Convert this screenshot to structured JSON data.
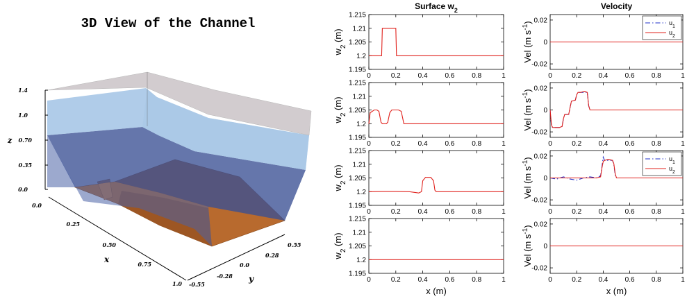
{
  "view3d": {
    "title": "3D View of the Channel",
    "z_label": "z",
    "x_label": "x",
    "y_label": "y",
    "z_ticks": [
      "1.4",
      "1.0",
      "0.70",
      "0.35",
      "0.0"
    ],
    "x_ticks": [
      "0.0",
      "0.25",
      "0.50",
      "0.75",
      "1.0"
    ],
    "y_ticks": [
      "-0.55",
      "-0.28",
      "0.0",
      "0.28",
      "0.55"
    ],
    "colors": {
      "bottom": "#b5672a",
      "lower_layer": "#3a4f93",
      "upper_layer": "#8fb6e0",
      "top": "#c9c3c6"
    }
  },
  "chart_data": [
    {
      "id": "surface-w2-1",
      "type": "line",
      "title": "Surface w2",
      "xlabel": "",
      "ylabel": "w2 (m)",
      "xlim": [
        0,
        1
      ],
      "ylim": [
        1.195,
        1.215
      ],
      "xticks": [
        "0",
        "0.2",
        "0.4",
        "0.6",
        "0.8",
        "1"
      ],
      "yticks": [
        "1.215",
        "1.21",
        "1.205",
        "1.2",
        "1.195"
      ],
      "series": [
        {
          "color": "#e0201b",
          "style": "solid",
          "x": [
            0,
            0.095,
            0.1,
            0.2,
            0.205,
            1
          ],
          "y": [
            1.2,
            1.2,
            1.21,
            1.21,
            1.2,
            1.2
          ]
        }
      ]
    },
    {
      "id": "velocity-1",
      "type": "line",
      "title": "Velocity",
      "xlabel": "",
      "ylabel": "Vel (m s-1)",
      "xlim": [
        0,
        1
      ],
      "ylim": [
        -0.025,
        0.025
      ],
      "xticks": [
        "0",
        "0.2",
        "0.4",
        "0.6",
        "0.8",
        "1"
      ],
      "yticks": [
        "0.02",
        "0",
        "-0.02"
      ],
      "legend": {
        "position": "top-right",
        "entries": [
          "u1",
          "u2"
        ]
      },
      "series": [
        {
          "name": "u1",
          "color": "#1f2fc8",
          "style": "dashdot",
          "x": [
            0,
            1
          ],
          "y": [
            0,
            0
          ]
        },
        {
          "name": "u2",
          "color": "#e0201b",
          "style": "solid",
          "x": [
            0,
            1
          ],
          "y": [
            0,
            0
          ]
        }
      ]
    },
    {
      "id": "surface-w2-2",
      "type": "line",
      "xlabel": "",
      "ylabel": "w2 (m)",
      "xlim": [
        0,
        1
      ],
      "ylim": [
        1.195,
        1.215
      ],
      "xticks": [
        "0",
        "0.2",
        "0.4",
        "0.6",
        "0.8",
        "1"
      ],
      "yticks": [
        "1.215",
        "1.21",
        "1.205",
        "1.2",
        "1.195"
      ],
      "series": [
        {
          "color": "#e0201b",
          "style": "solid",
          "x": [
            0,
            0.01,
            0.04,
            0.06,
            0.075,
            0.09,
            0.1,
            0.13,
            0.14,
            0.155,
            0.17,
            0.2,
            0.22,
            0.24,
            0.26,
            0.27,
            0.28,
            0.32,
            1
          ],
          "y": [
            1.2,
            1.204,
            1.205,
            1.205,
            1.2045,
            1.2005,
            1.2,
            1.2,
            1.2005,
            1.204,
            1.205,
            1.205,
            1.205,
            1.2045,
            1.2,
            1.2,
            1.2,
            1.2,
            1.2
          ]
        }
      ]
    },
    {
      "id": "velocity-2",
      "type": "line",
      "xlabel": "",
      "ylabel": "Vel (m s-1)",
      "xlim": [
        0,
        1
      ],
      "ylim": [
        -0.025,
        0.025
      ],
      "xticks": [
        "0",
        "0.2",
        "0.4",
        "0.6",
        "0.8",
        "1"
      ],
      "yticks": [
        "0.02",
        "0",
        "-0.02"
      ],
      "series": [
        {
          "name": "u1",
          "color": "#1f2fc8",
          "style": "dashdot",
          "x": [
            0,
            0.01,
            0.02,
            0.04,
            0.07,
            0.09,
            0.1,
            0.11,
            0.14,
            0.15,
            0.16,
            0.19,
            0.2,
            0.21,
            0.23,
            0.26,
            0.28,
            0.29,
            0.3,
            1
          ],
          "y": [
            0,
            -0.015,
            -0.016,
            -0.016,
            -0.016,
            -0.015,
            -0.008,
            -0.004,
            -0.004,
            0.002,
            0.008,
            0.009,
            0.014,
            0.016,
            0.016,
            0.016,
            0.016,
            0.004,
            0,
            0
          ]
        },
        {
          "name": "u2",
          "color": "#e0201b",
          "style": "solid",
          "x": [
            0,
            0.01,
            0.02,
            0.04,
            0.07,
            0.09,
            0.1,
            0.11,
            0.14,
            0.15,
            0.16,
            0.19,
            0.2,
            0.21,
            0.23,
            0.26,
            0.28,
            0.29,
            0.3,
            1
          ],
          "y": [
            0,
            -0.014,
            -0.016,
            -0.016,
            -0.016,
            -0.015,
            -0.008,
            -0.004,
            -0.004,
            0.002,
            0.008,
            0.009,
            0.014,
            0.016,
            0.016,
            0.017,
            0.016,
            0.004,
            0,
            0
          ]
        }
      ]
    },
    {
      "id": "surface-w2-3",
      "type": "line",
      "xlabel": "",
      "ylabel": "w2 (m)",
      "xlim": [
        0,
        1
      ],
      "ylim": [
        1.195,
        1.215
      ],
      "xticks": [
        "0",
        "0.2",
        "0.4",
        "0.6",
        "0.8",
        "1"
      ],
      "yticks": [
        "1.215",
        "1.21",
        "1.205",
        "1.2",
        "1.195"
      ],
      "series": [
        {
          "color": "#e0201b",
          "style": "solid",
          "x": [
            0,
            0.1,
            0.2,
            0.3,
            0.37,
            0.39,
            0.4,
            0.42,
            0.46,
            0.48,
            0.49,
            0.5,
            0.52,
            1
          ],
          "y": [
            1.2,
            1.2001,
            1.2001,
            1.2,
            1.1995,
            1.2,
            1.204,
            1.2052,
            1.2052,
            1.204,
            1.2005,
            1.2,
            1.2,
            1.2
          ]
        }
      ]
    },
    {
      "id": "velocity-3",
      "type": "line",
      "xlabel": "",
      "ylabel": "Vel (m s-1)",
      "xlim": [
        0,
        1
      ],
      "ylim": [
        -0.025,
        0.025
      ],
      "xticks": [
        "0",
        "0.2",
        "0.4",
        "0.6",
        "0.8",
        "1"
      ],
      "yticks": [
        "0.02",
        "0",
        "-0.02"
      ],
      "legend": {
        "position": "top-right",
        "entries": [
          "u1",
          "u2"
        ]
      },
      "series": [
        {
          "name": "u1",
          "color": "#1f2fc8",
          "style": "dashdot",
          "x": [
            0,
            0.05,
            0.1,
            0.15,
            0.2,
            0.25,
            0.3,
            0.35,
            0.38,
            0.39,
            0.4,
            0.41,
            0.44,
            0.47,
            0.48,
            0.49,
            0.5,
            1
          ],
          "y": [
            0,
            -0.001,
            0.001,
            -0.001,
            -0.002,
            0,
            0.001,
            0,
            0.002,
            0.01,
            0.019,
            0.016,
            0.016,
            0.016,
            0.012,
            0.003,
            0,
            0
          ]
        },
        {
          "name": "u2",
          "color": "#e0201b",
          "style": "solid",
          "x": [
            0,
            0.05,
            0.1,
            0.15,
            0.2,
            0.25,
            0.3,
            0.35,
            0.38,
            0.39,
            0.4,
            0.41,
            0.44,
            0.47,
            0.48,
            0.49,
            0.5,
            1
          ],
          "y": [
            0,
            0,
            0,
            0,
            0,
            0,
            0,
            0,
            0.001,
            0.009,
            0.015,
            0.016,
            0.017,
            0.016,
            0.013,
            0.004,
            0,
            0
          ]
        }
      ]
    },
    {
      "id": "surface-w2-4",
      "type": "line",
      "xlabel": "x (m)",
      "ylabel": "w2 (m)",
      "xlim": [
        0,
        1
      ],
      "ylim": [
        1.195,
        1.215
      ],
      "xticks": [
        "0",
        "0.2",
        "0.4",
        "0.6",
        "0.8",
        "1"
      ],
      "yticks": [
        "1.215",
        "1.21",
        "1.205",
        "1.2",
        "1.195"
      ],
      "series": [
        {
          "color": "#e0201b",
          "style": "solid",
          "x": [
            0,
            1
          ],
          "y": [
            1.2,
            1.2
          ]
        }
      ]
    },
    {
      "id": "velocity-4",
      "type": "line",
      "xlabel": "x (m)",
      "ylabel": "Vel (m s-1)",
      "xlim": [
        0,
        1
      ],
      "ylim": [
        -0.025,
        0.025
      ],
      "xticks": [
        "0",
        "0.2",
        "0.4",
        "0.6",
        "0.8",
        "1"
      ],
      "yticks": [
        "0.02",
        "0",
        "-0.02"
      ],
      "series": [
        {
          "name": "u1",
          "color": "#1f2fc8",
          "style": "dashdot",
          "x": [
            0,
            1
          ],
          "y": [
            0,
            0
          ]
        },
        {
          "name": "u2",
          "color": "#e0201b",
          "style": "solid",
          "x": [
            0,
            1
          ],
          "y": [
            0,
            0
          ]
        }
      ]
    }
  ]
}
